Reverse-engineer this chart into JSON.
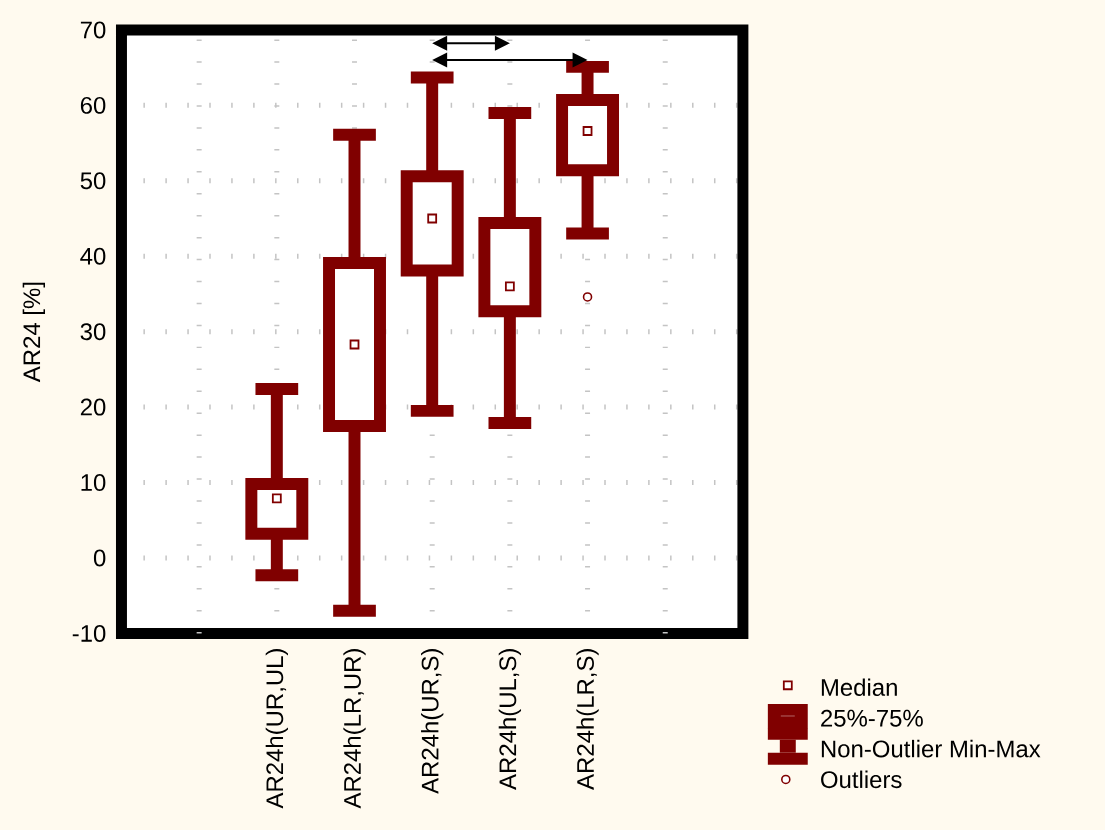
{
  "chart_data": {
    "type": "box",
    "ylabel": "AR24 [%]",
    "categories": [
      "AR24h(UR,UL)",
      "AR24h(LR,UR)",
      "AR24h(UR,S)",
      "AR24h(UL,S)",
      "AR24h(LR,S)"
    ],
    "boxes": [
      {
        "low": -2.3,
        "q1": 3.2,
        "median": 7.9,
        "q3": 9.8,
        "high": 22.4
      },
      {
        "low": -7.0,
        "q1": 17.5,
        "median": 28.3,
        "q3": 39.1,
        "high": 56.1
      },
      {
        "low": 19.5,
        "q1": 38.1,
        "median": 45.0,
        "q3": 50.6,
        "high": 63.7
      },
      {
        "low": 17.9,
        "q1": 32.7,
        "median": 36.0,
        "q3": 44.4,
        "high": 59.0
      },
      {
        "low": 43.0,
        "q1": 51.4,
        "median": 56.6,
        "q3": 60.7,
        "high": 65.1,
        "outliers": [
          34.6
        ]
      }
    ],
    "color": "#800000",
    "ylim": [
      -10,
      70
    ],
    "yticks": [
      -10,
      0,
      10,
      20,
      30,
      40,
      50,
      60,
      70
    ],
    "grid": true,
    "marker": "square",
    "annotations": [
      "Median",
      "25%-75%",
      "Non-Outlier Min-Max",
      "Outliers"
    ]
  }
}
